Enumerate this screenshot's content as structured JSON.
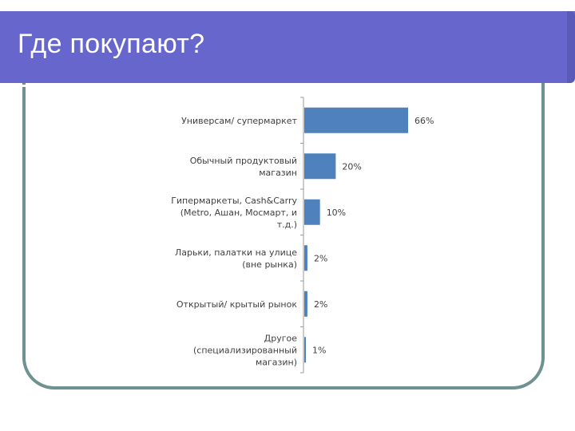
{
  "slide": {
    "title": "Где покупают?"
  },
  "colors": {
    "title_bar": "#6666cc",
    "frame": "#6e9290",
    "bar": "#4f81bd",
    "axis": "#9a9a9a",
    "text": "#404040"
  },
  "chart_data": {
    "type": "bar",
    "orientation": "horizontal",
    "title": "",
    "xlabel": "",
    "ylabel": "",
    "xlim": [
      0,
      66
    ],
    "grid": false,
    "legend": "none",
    "categories": [
      [
        "Универсам/ супермаркет"
      ],
      [
        "Обычный продуктовый",
        "магазин"
      ],
      [
        "Гипермаркеты, Cash&Carry",
        "(Metro, Ашан, Мосмарт, и",
        "т.д.)"
      ],
      [
        "Ларьки, палатки на улице",
        "(вне рынка)"
      ],
      [
        "Открытый/ крытый рынок"
      ],
      [
        "Другое",
        "(специализированный",
        "магазин)"
      ]
    ],
    "values": [
      66,
      20,
      10,
      2,
      2,
      1
    ],
    "value_labels": [
      "66%",
      "20%",
      "10%",
      "2%",
      "2%",
      "1%"
    ]
  }
}
